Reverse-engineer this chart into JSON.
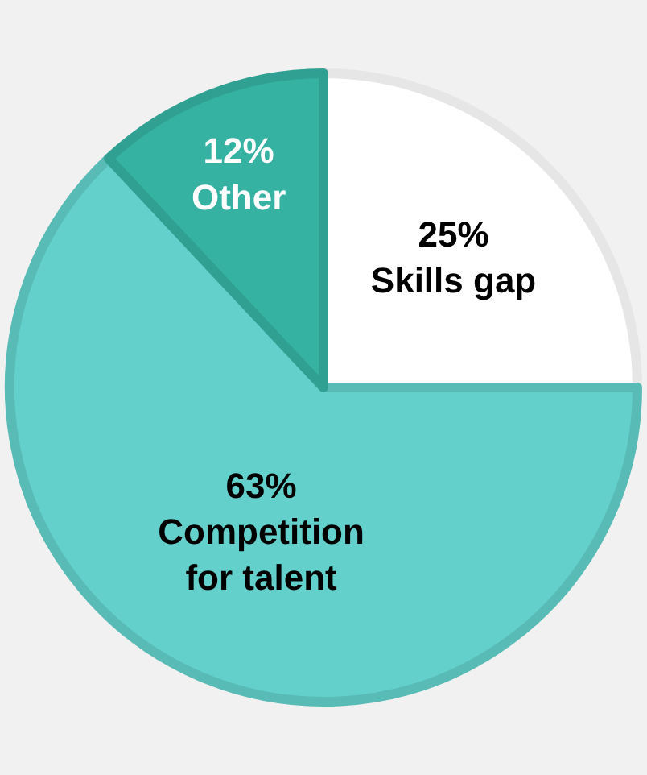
{
  "chart_data": {
    "type": "pie",
    "categories": [
      "Skills gap",
      "Competition for talent",
      "Other"
    ],
    "values": [
      25,
      63,
      12
    ],
    "value_labels": [
      "25%",
      "63%",
      "12%"
    ],
    "colors": [
      "#ffffff",
      "#63d0cb",
      "#36b2a3"
    ],
    "legend": false
  }
}
